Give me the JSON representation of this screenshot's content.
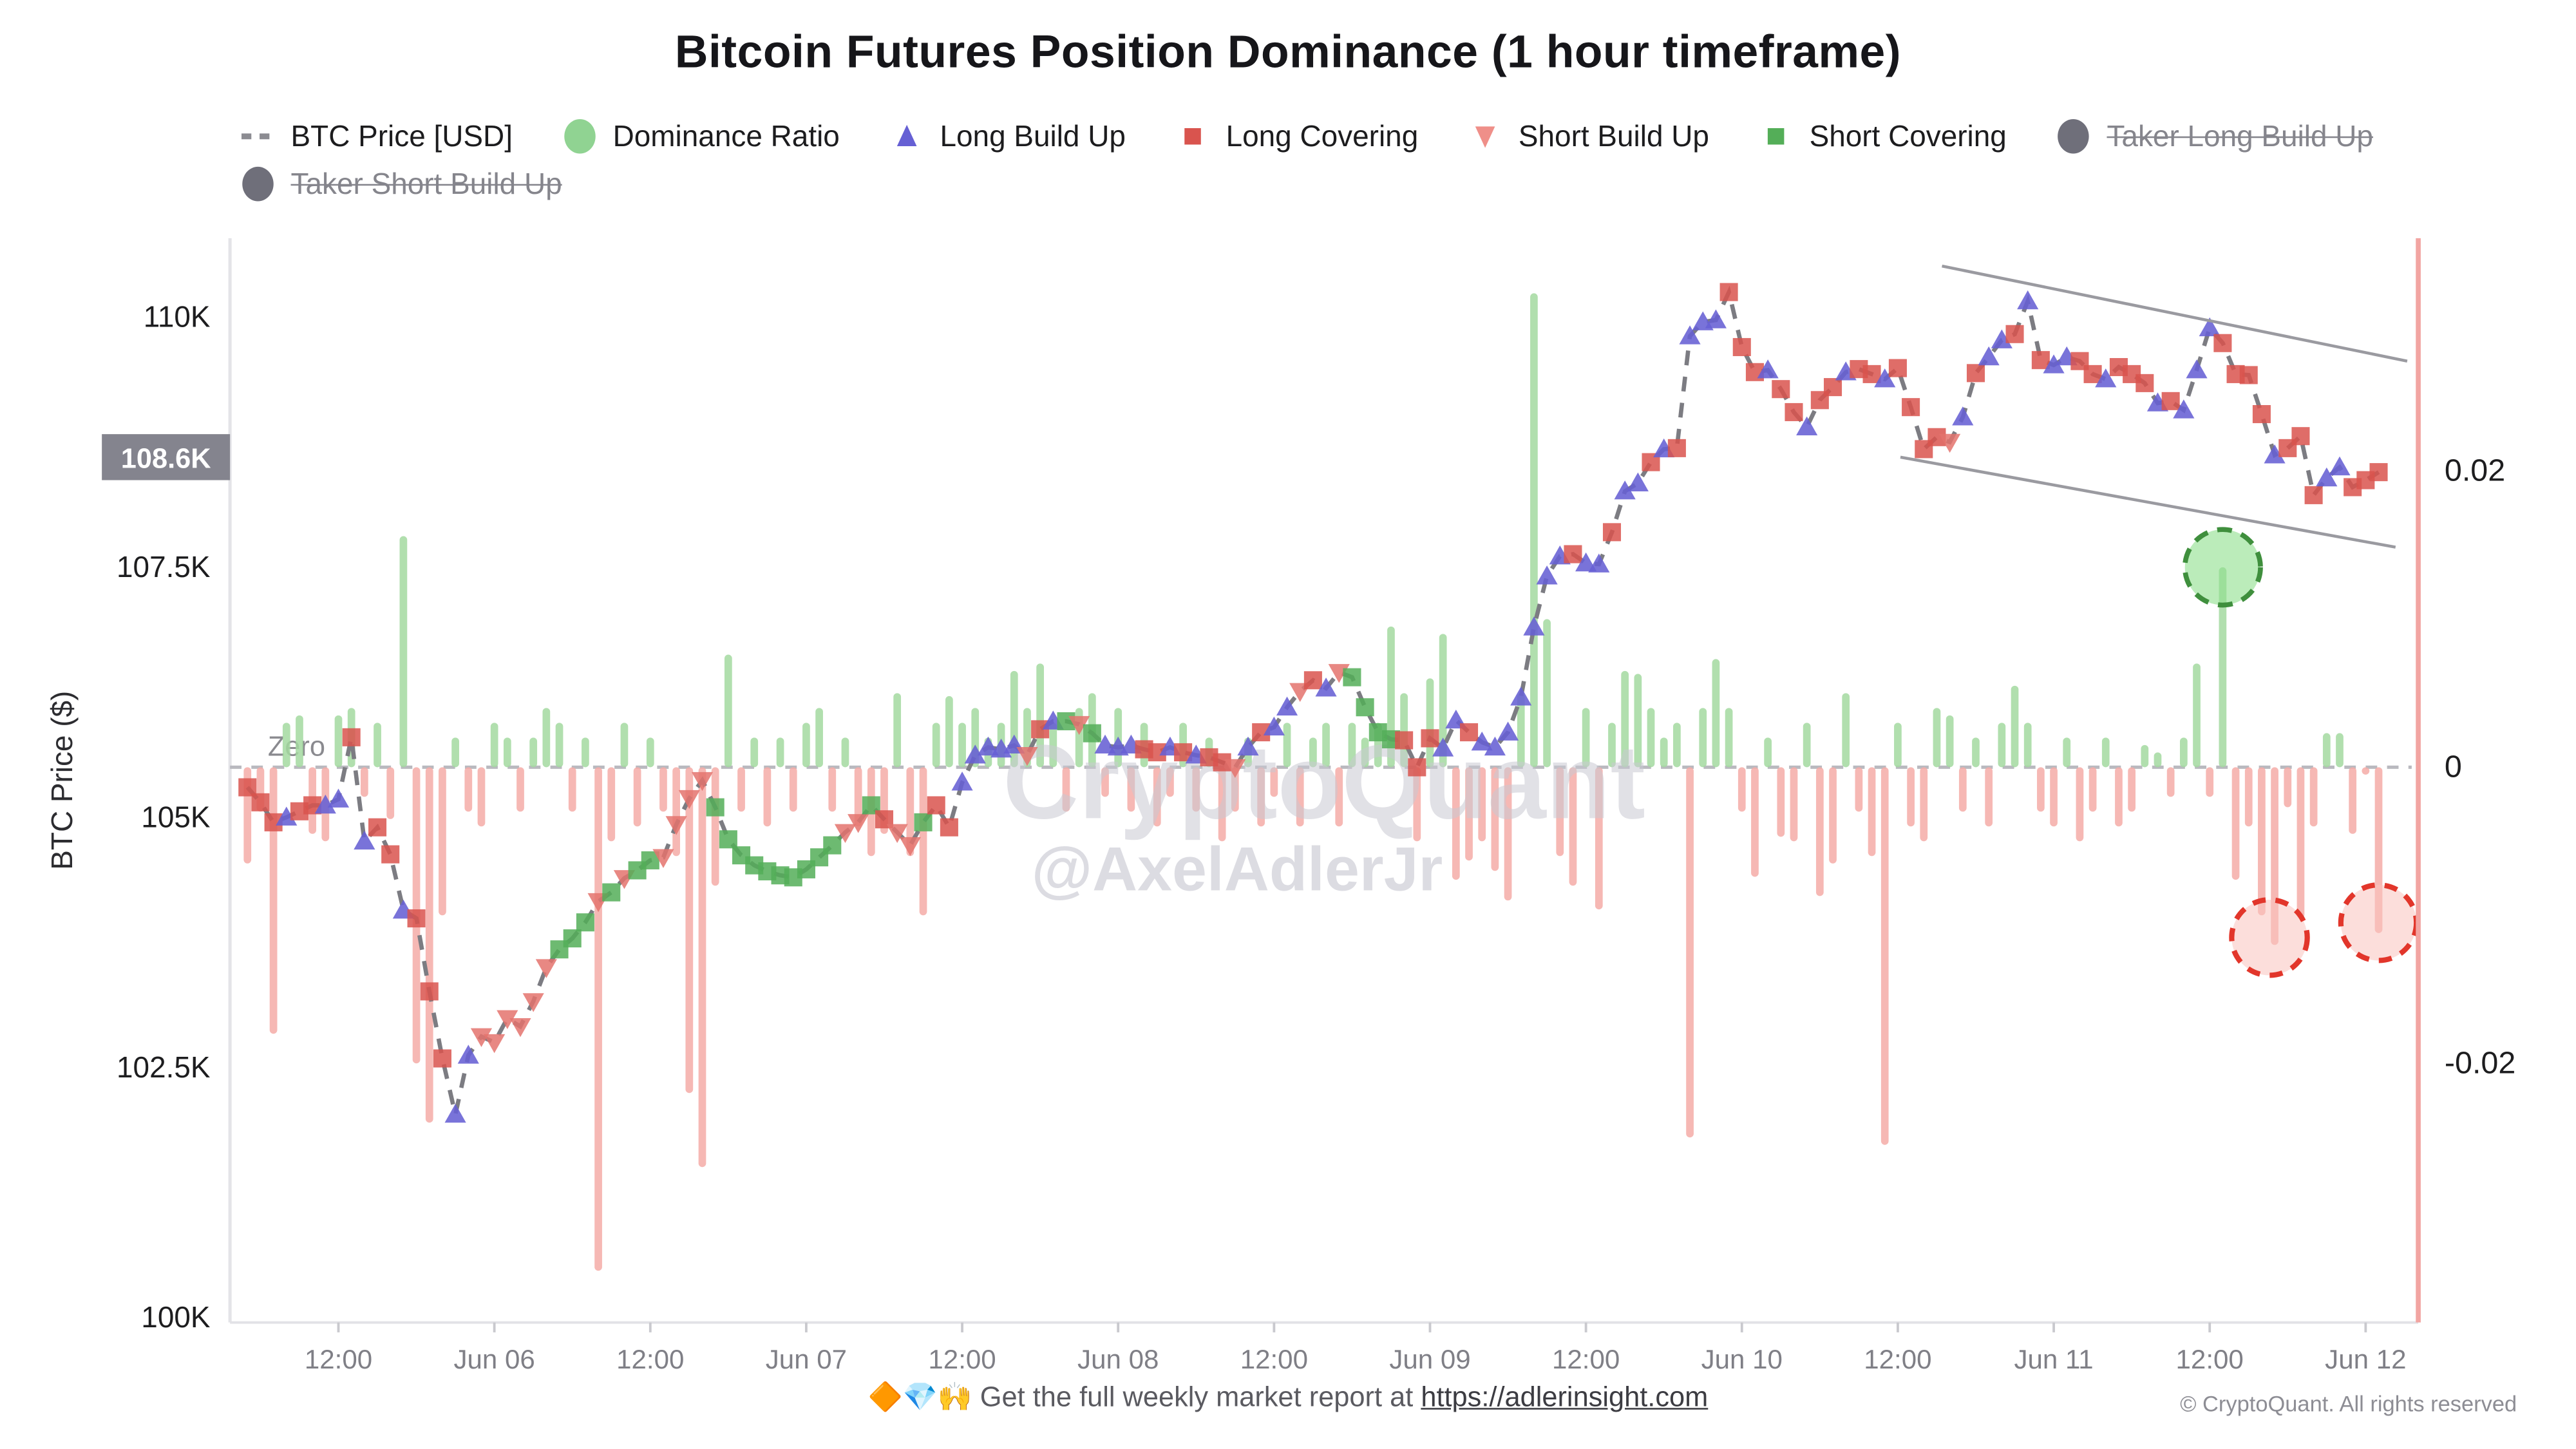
{
  "title": "Bitcoin Futures Position Dominance (1 hour timeframe)",
  "watermark": {
    "line1": "CryptoQuant",
    "line2": "@AxelAdlerJr"
  },
  "legend": {
    "items": [
      {
        "label": "BTC Price [USD]",
        "icon": "dash",
        "color": "#8c8c92",
        "struck": false
      },
      {
        "label": "Dominance Ratio",
        "icon": "circle",
        "color": "#90d392",
        "struck": false
      },
      {
        "label": "Long Build Up",
        "icon": "triangle-up",
        "color": "#6660d4",
        "struck": false
      },
      {
        "label": "Long Covering",
        "icon": "square",
        "color": "#d9544e",
        "struck": false
      },
      {
        "label": "Short Build Up",
        "icon": "triangle-down",
        "color": "#ef8f89",
        "struck": false
      },
      {
        "label": "Short Covering",
        "icon": "square",
        "color": "#54ae58",
        "struck": false
      },
      {
        "label": "Taker Long Build Up",
        "icon": "circle",
        "color": "#6f6f7a",
        "struck": true
      },
      {
        "label": "Taker Short Build Up",
        "icon": "circle",
        "color": "#6f6f7a",
        "struck": true
      }
    ]
  },
  "axes": {
    "y_left_title": "BTC Price ($)",
    "y_left_ticks": [
      {
        "label": "110K",
        "v": 110
      },
      {
        "label": "107.5K",
        "v": 107.5
      },
      {
        "label": "105K",
        "v": 105
      },
      {
        "label": "102.5K",
        "v": 102.5
      },
      {
        "label": "100K",
        "v": 100
      }
    ],
    "price_badge": {
      "label": "108.6K",
      "v": 108.6
    },
    "y_right_ticks": [
      {
        "label": "0.02",
        "v": 0.02
      },
      {
        "label": "0",
        "v": 0
      },
      {
        "label": "-0.02",
        "v": -0.02
      }
    ],
    "x_ticks": [
      {
        "label": "12:00",
        "t": 8
      },
      {
        "label": "Jun 06",
        "t": 20
      },
      {
        "label": "12:00",
        "t": 32
      },
      {
        "label": "Jun 07",
        "t": 44
      },
      {
        "label": "12:00",
        "t": 56
      },
      {
        "label": "Jun 08",
        "t": 68
      },
      {
        "label": "12:00",
        "t": 80
      },
      {
        "label": "Jun 09",
        "t": 92
      },
      {
        "label": "12:00",
        "t": 104
      },
      {
        "label": "Jun 10",
        "t": 116
      },
      {
        "label": "12:00",
        "t": 128
      },
      {
        "label": "Jun 11",
        "t": 140
      },
      {
        "label": "12:00",
        "t": 152
      },
      {
        "label": "Jun 12",
        "t": 164
      }
    ],
    "zero_label": "Zero"
  },
  "footer": {
    "emojis": "🔶💎🙌",
    "promo_prefix": "Get the full weekly market report at ",
    "link_text": "https://adlerinsight.com",
    "link_href": "https://adlerinsight.com",
    "copyright": "© CryptoQuant. All rights reserved"
  },
  "colors": {
    "bar_pos": "#a3d9a0",
    "bar_neg": "#f4aba7",
    "price_line": "#7c7c82",
    "long_build_up": "#6660d4",
    "long_covering": "#d9544e",
    "short_build_up": "#e4736d",
    "short_covering": "#54ae58",
    "channel": "#9a9aa0",
    "right_axis_line": "#f2a5a2",
    "watermark": "#c9c9d2",
    "badge_bg": "#84848e",
    "highlight_green_fill": "#8ee08c",
    "highlight_green_stroke": "#3f8f3d",
    "highlight_red_fill": "#f9c2bd",
    "highlight_red_stroke": "#e2362b"
  },
  "chart_data": {
    "type": "mixed",
    "description": "Hourly BTC price (dashed line with position markers) + dominance-ratio bars. t = hours since Jun 05 04:00. Row = [t, price_kUSD, marker, dominance_ratio]. Markers: LB=Long Build Up, LC=Long Covering, SB=Short Build Up, SC=Short Covering.",
    "xlabel_span": [
      "Jun 05 04:00",
      "Jun 12 04:00"
    ],
    "price_range_k": [
      100,
      110.75
    ],
    "ratio_axis": {
      "ticks": [
        0.02,
        0,
        -0.02
      ],
      "zero_at_price_k": 105.5
    },
    "series": [
      [
        1,
        105.3,
        "LC",
        -0.0065
      ],
      [
        2,
        105.15,
        "LC",
        -0.003
      ],
      [
        3,
        104.95,
        "LC",
        -0.018
      ],
      [
        4,
        105.0,
        "LB",
        0.003
      ],
      [
        5,
        105.06,
        "LC",
        0.0035
      ],
      [
        6,
        105.12,
        "LC",
        -0.0045
      ],
      [
        7,
        105.12,
        "LB",
        -0.005
      ],
      [
        8,
        105.18,
        "LB",
        0.0035
      ],
      [
        9,
        105.8,
        "LC",
        0.004
      ],
      [
        10,
        104.76,
        "LB",
        -0.002
      ],
      [
        11,
        104.9,
        "LC",
        0.003
      ],
      [
        12,
        104.63,
        "LC",
        -0.0035
      ],
      [
        13,
        104.07,
        "LB",
        0.0156
      ],
      [
        14,
        103.99,
        "LC",
        -0.02
      ],
      [
        15,
        103.26,
        "LC",
        -0.024
      ],
      [
        16,
        102.59,
        "LC",
        -0.01
      ],
      [
        17,
        102.03,
        "LB",
        0.002
      ],
      [
        18,
        102.62,
        "LB",
        -0.003
      ],
      [
        19,
        102.81,
        "SB",
        -0.004
      ],
      [
        20,
        102.75,
        "SB",
        0.003
      ],
      [
        21,
        102.99,
        "SB",
        0.002
      ],
      [
        22,
        102.91,
        "SB",
        -0.003
      ],
      [
        23,
        103.16,
        "SB",
        0.002
      ],
      [
        24,
        103.5,
        "SB",
        0.004
      ],
      [
        25,
        103.68,
        "SC",
        0.003
      ],
      [
        26,
        103.79,
        "SC",
        -0.003
      ],
      [
        27,
        103.95,
        "SC",
        0.002
      ],
      [
        28,
        104.16,
        "SB",
        -0.034
      ],
      [
        29,
        104.25,
        "SC",
        -0.005
      ],
      [
        30,
        104.39,
        "SB",
        0.003
      ],
      [
        31,
        104.47,
        "SC",
        -0.004
      ],
      [
        32,
        104.57,
        "SC",
        0.002
      ],
      [
        33,
        104.6,
        "SB",
        -0.003
      ],
      [
        34,
        104.93,
        "SB",
        -0.006
      ],
      [
        35,
        105.19,
        "SB",
        -0.022
      ],
      [
        36,
        105.37,
        "SB",
        -0.027
      ],
      [
        37,
        105.1,
        "SC",
        -0.008
      ],
      [
        38,
        104.78,
        "SC",
        0.0076
      ],
      [
        39,
        104.62,
        "SC",
        -0.003
      ],
      [
        40,
        104.52,
        "SC",
        0.002
      ],
      [
        41,
        104.46,
        "SC",
        -0.004
      ],
      [
        42,
        104.42,
        "SC",
        0.002
      ],
      [
        43,
        104.4,
        "SC",
        -0.003
      ],
      [
        44,
        104.48,
        "SC",
        0.003
      ],
      [
        45,
        104.6,
        "SC",
        0.004
      ],
      [
        46,
        104.72,
        "SC",
        -0.003
      ],
      [
        47,
        104.85,
        "SB",
        0.002
      ],
      [
        48,
        104.95,
        "SB",
        -0.004
      ],
      [
        49,
        105.12,
        "SC",
        -0.006
      ],
      [
        50,
        104.98,
        "LC",
        -0.0045
      ],
      [
        51,
        104.85,
        "SB",
        0.005
      ],
      [
        52,
        104.72,
        "SB",
        -0.006
      ],
      [
        53,
        104.95,
        "SC",
        -0.01
      ],
      [
        54,
        105.12,
        "LC",
        0.003
      ],
      [
        55,
        104.9,
        "LC",
        0.0048
      ],
      [
        56,
        105.35,
        "LB",
        0.003
      ],
      [
        57,
        105.62,
        "LB",
        0.004
      ],
      [
        58,
        105.7,
        "LB",
        0.002
      ],
      [
        59,
        105.68,
        "LB",
        0.003
      ],
      [
        60,
        105.72,
        "LB",
        0.0065
      ],
      [
        61,
        105.62,
        "SB",
        0.004
      ],
      [
        62,
        105.88,
        "LC",
        0.007
      ],
      [
        63,
        105.96,
        "LB",
        0.003
      ],
      [
        64,
        105.96,
        "SC",
        -0.003
      ],
      [
        65,
        105.93,
        "SB",
        0.004
      ],
      [
        66,
        105.84,
        "SC",
        0.005
      ],
      [
        67,
        105.72,
        "LB",
        -0.002
      ],
      [
        68,
        105.7,
        "LB",
        0.004
      ],
      [
        69,
        105.72,
        "LB",
        -0.003
      ],
      [
        70,
        105.68,
        "LC",
        0.003
      ],
      [
        71,
        105.65,
        "LC",
        -0.004
      ],
      [
        72,
        105.7,
        "LB",
        -0.002
      ],
      [
        73,
        105.65,
        "LC",
        0.003
      ],
      [
        74,
        105.62,
        "LB",
        -0.003
      ],
      [
        75,
        105.6,
        "LC",
        0.002
      ],
      [
        76,
        105.55,
        "LC",
        -0.005
      ],
      [
        77,
        105.5,
        "SB",
        -0.003
      ],
      [
        78,
        105.7,
        "LB",
        0.002
      ],
      [
        79,
        105.85,
        "LC",
        -0.004
      ],
      [
        80,
        105.9,
        "LB",
        -0.002
      ],
      [
        81,
        106.1,
        "LB",
        0.003
      ],
      [
        82,
        106.26,
        "SB",
        -0.004
      ],
      [
        83,
        106.37,
        "LC",
        0.002
      ],
      [
        84,
        106.29,
        "LB",
        0.003
      ],
      [
        85,
        106.45,
        "SB",
        -0.004
      ],
      [
        86,
        106.4,
        "SC",
        0.003
      ],
      [
        87,
        106.1,
        "SC",
        0.002
      ],
      [
        88,
        105.85,
        "SC",
        0.003
      ],
      [
        89,
        105.78,
        "SC",
        0.0095
      ],
      [
        90,
        105.77,
        "LC",
        0.005
      ],
      [
        91,
        105.5,
        "LC",
        -0.005
      ],
      [
        92,
        105.79,
        "LC",
        0.006
      ],
      [
        93,
        105.69,
        "LB",
        0.009
      ],
      [
        94,
        105.97,
        "LB",
        -0.0076
      ],
      [
        95,
        105.85,
        "LC",
        -0.0063
      ],
      [
        96,
        105.75,
        "LB",
        -0.005
      ],
      [
        97,
        105.7,
        "LB",
        -0.007
      ],
      [
        98,
        105.85,
        "LB",
        -0.009
      ],
      [
        99,
        106.2,
        "LB",
        0.005
      ],
      [
        100,
        106.9,
        "LB",
        0.032
      ],
      [
        101,
        107.41,
        "LB",
        0.01
      ],
      [
        102,
        107.61,
        "LB",
        -0.006
      ],
      [
        103,
        107.63,
        "LC",
        -0.008
      ],
      [
        104,
        107.54,
        "LB",
        0.004
      ],
      [
        105,
        107.53,
        "LB",
        -0.0096
      ],
      [
        106,
        107.85,
        "LC",
        0.003
      ],
      [
        107,
        108.26,
        "LB",
        0.0065
      ],
      [
        108,
        108.34,
        "LB",
        0.0063
      ],
      [
        109,
        108.55,
        "LC",
        0.004
      ],
      [
        110,
        108.68,
        "LB",
        0.002
      ],
      [
        111,
        108.69,
        "LC",
        0.003
      ],
      [
        112,
        109.81,
        "LB",
        -0.025
      ],
      [
        113,
        109.95,
        "LB",
        0.004
      ],
      [
        114,
        109.97,
        "LB",
        0.0073
      ],
      [
        115,
        110.25,
        "LC",
        0.004
      ],
      [
        116,
        109.7,
        "LC",
        -0.003
      ],
      [
        117,
        109.45,
        "LC",
        -0.0074
      ],
      [
        118,
        109.47,
        "LB",
        0.002
      ],
      [
        119,
        109.28,
        "LC",
        -0.0047
      ],
      [
        120,
        109.05,
        "LC",
        -0.005
      ],
      [
        121,
        108.9,
        "LB",
        0.003
      ],
      [
        122,
        109.17,
        "LC",
        -0.0087
      ],
      [
        123,
        109.3,
        "LC",
        -0.0065
      ],
      [
        124,
        109.45,
        "LB",
        0.005
      ],
      [
        125,
        109.48,
        "LC",
        -0.003
      ],
      [
        126,
        109.43,
        "LC",
        -0.006
      ],
      [
        127,
        109.38,
        "LB",
        -0.0255
      ],
      [
        128,
        109.49,
        "LC",
        0.003
      ],
      [
        129,
        109.1,
        "LC",
        -0.004
      ],
      [
        130,
        108.68,
        "LC",
        -0.005
      ],
      [
        131,
        108.8,
        "LC",
        0.004
      ],
      [
        132,
        108.75,
        "SB",
        0.0035
      ],
      [
        133,
        109.0,
        "LB",
        -0.003
      ],
      [
        134,
        109.44,
        "LC",
        0.002
      ],
      [
        135,
        109.6,
        "LB",
        -0.004
      ],
      [
        136,
        109.77,
        "LB",
        0.003
      ],
      [
        137,
        109.83,
        "LC",
        0.0055
      ],
      [
        138,
        110.16,
        "LB",
        0.003
      ],
      [
        139,
        109.57,
        "LC",
        -0.003
      ],
      [
        140,
        109.52,
        "LB",
        -0.004
      ],
      [
        141,
        109.6,
        "LB",
        0.002
      ],
      [
        142,
        109.56,
        "LC",
        -0.005
      ],
      [
        143,
        109.43,
        "LC",
        -0.003
      ],
      [
        144,
        109.38,
        "LB",
        0.002
      ],
      [
        145,
        109.5,
        "LC",
        -0.004
      ],
      [
        146,
        109.43,
        "LC",
        -0.003
      ],
      [
        147,
        109.34,
        "LC",
        0.0015
      ],
      [
        148,
        109.14,
        "LB",
        0.001
      ],
      [
        149,
        109.16,
        "LC",
        -0.002
      ],
      [
        150,
        109.07,
        "LB",
        0.002
      ],
      [
        151,
        109.47,
        "LB",
        0.007
      ],
      [
        152,
        109.89,
        "LB",
        -0.002
      ],
      [
        153,
        109.74,
        "LC",
        0.0135
      ],
      [
        154,
        109.43,
        "LC",
        -0.0076
      ],
      [
        155,
        109.42,
        "LC",
        -0.004
      ],
      [
        156,
        109.03,
        "LC",
        -0.01
      ],
      [
        157,
        108.62,
        "LB",
        -0.012
      ],
      [
        158,
        108.69,
        "LC",
        -0.0027
      ],
      [
        159,
        108.81,
        "LC",
        -0.0102
      ],
      [
        160,
        108.22,
        "LC",
        -0.004
      ],
      [
        161,
        108.39,
        "LB",
        0.0023
      ],
      [
        162,
        108.5,
        "LB",
        0.0023
      ],
      [
        163,
        108.3,
        "LC",
        -0.0045
      ],
      [
        164,
        108.37,
        "LC",
        -0.0005
      ],
      [
        165,
        108.45,
        "LC",
        -0.0112
      ]
    ],
    "channel_lines": [
      {
        "t1": 131.4,
        "p1": 110.51,
        "t2": 167.2,
        "p2": 109.56
      },
      {
        "t1": 128.2,
        "p1": 108.6,
        "t2": 166.3,
        "p2": 107.7
      }
    ],
    "highlights": [
      {
        "kind": "green",
        "t": 153.0,
        "v": 0.0135,
        "r": 23
      },
      {
        "kind": "red",
        "t": 156.6,
        "v": -0.0115,
        "r": 23
      },
      {
        "kind": "red",
        "t": 165.0,
        "v": -0.0105,
        "r": 23
      }
    ]
  }
}
